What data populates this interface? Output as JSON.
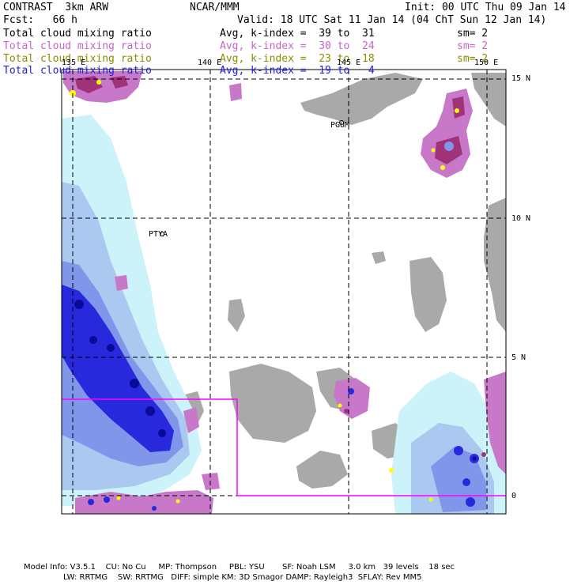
{
  "header": {
    "model": "CONTRAST  3km ARW",
    "org": "NCAR/MMM",
    "init": "Init: 00 UTC Thu 09 Jan 14",
    "fcst": "Fcst:   66 h",
    "valid": "Valid: 18 UTC Sat 11 Jan 14 (04 ChT Sun 12 Jan 14)"
  },
  "legend": [
    {
      "field": "Total cloud mixing ratio",
      "range": "Avg, k-index =  39 to  31",
      "sm": "sm= 2",
      "color": "#000000"
    },
    {
      "field": "Total cloud mixing ratio",
      "range": "Avg, k-index =  30 to  24",
      "sm": "sm= 2",
      "color": "#c864c8"
    },
    {
      "field": "Total cloud mixing ratio",
      "range": "Avg, k-index =  23 to  18",
      "sm": "sm= 2",
      "color": "#8c8c00"
    },
    {
      "field": "Total cloud mixing ratio",
      "range": "Avg, k-index =  19 to   4",
      "sm": "",
      "color": "#1e1edc"
    }
  ],
  "map": {
    "lon_labels": [
      "135 E",
      "140 E",
      "145 E",
      "150 E"
    ],
    "lat_labels": [
      "15 N",
      "10 N",
      "5 N",
      "0"
    ],
    "places": [
      "PGUM",
      "PTYA"
    ],
    "colors": {
      "land": "#a9a9a9",
      "pink_cloud": "#c878c8",
      "dark_pink": "#a0327a",
      "yellow": "#ffff00",
      "light_blue": "#ccf2fa",
      "mid_blue": "#aac8f0",
      "blue": "#7f96eb",
      "deep_blue": "#2828dc",
      "navy": "#0a0a96",
      "box": "#ff00ff"
    }
  },
  "footer": {
    "line1": "Model Info: V3.5.1    CU: No Cu     MP: Thompson     PBL: YSU       SF: Noah LSM     3.0 km   39 levels    18 sec",
    "line2": "LW: RRTMG    SW: RRTMG   DIFF: simple KM: 3D Smagor DAMP: Rayleigh3  SFLAY: Rev MM5"
  }
}
